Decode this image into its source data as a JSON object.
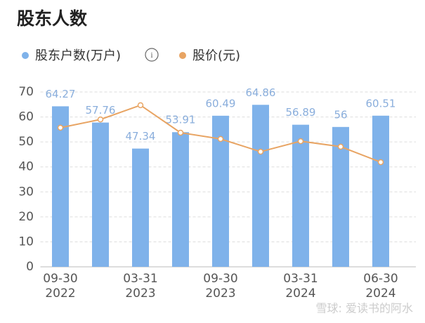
{
  "chart_data": {
    "type": "bar",
    "title": "股东人数",
    "categories": [
      "09-30\n2022",
      null,
      "03-31\n2023",
      null,
      "09-30\n2023",
      null,
      "03-31\n2024",
      null,
      "06-30\n2024"
    ],
    "series": [
      {
        "name": "股东户数(万户)",
        "color": "#7fb2ea",
        "values": [
          64.27,
          57.76,
          47.34,
          53.91,
          60.49,
          64.86,
          56.89,
          56,
          60.51
        ]
      },
      {
        "name": "股价(元)",
        "color": "#e8a463",
        "type": "line",
        "values": [
          55.7,
          59.0,
          64.7,
          53.7,
          51.2,
          46.1,
          50.3,
          48.1,
          41.9
        ]
      }
    ],
    "ylim": [
      0,
      70
    ],
    "yticks": [
      0,
      10,
      20,
      30,
      40,
      50,
      60,
      70
    ],
    "grid": true,
    "watermark": "雪球: 爱读书的阿水"
  }
}
